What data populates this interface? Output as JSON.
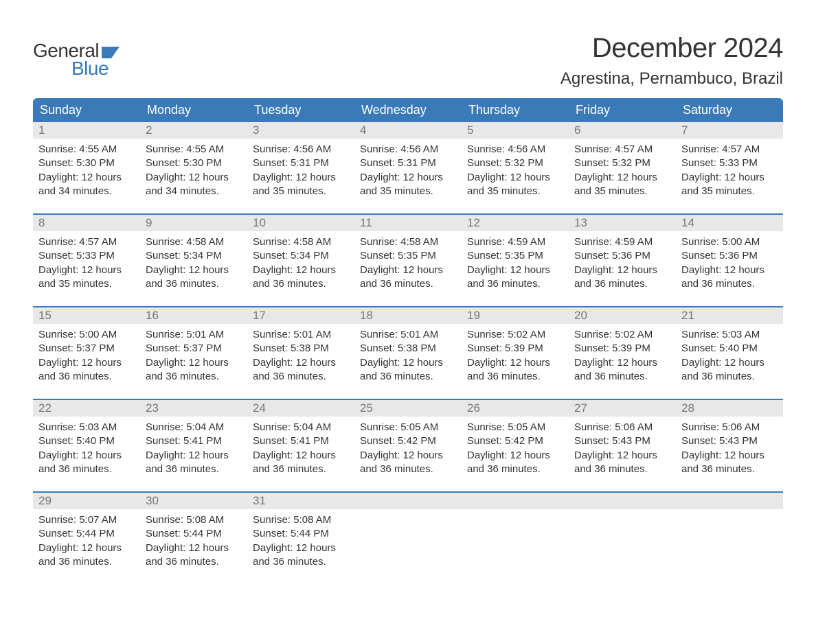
{
  "logo": {
    "text_top": "General",
    "text_bottom": "Blue",
    "flag_color": "#3a7ab8"
  },
  "title": "December 2024",
  "location": "Agrestina, Pernambuco, Brazil",
  "colors": {
    "header_bg": "#3a7ab8",
    "header_text": "#ffffff",
    "daynum_bg": "#e8e8e8",
    "daynum_text": "#777777",
    "body_text": "#333333",
    "week_divider": "#3a7ab8",
    "page_bg": "#ffffff"
  },
  "typography": {
    "title_fontsize": 40,
    "location_fontsize": 24,
    "dayname_fontsize": 18,
    "daynum_fontsize": 17,
    "body_fontsize": 15,
    "logo_fontsize": 28
  },
  "day_names": [
    "Sunday",
    "Monday",
    "Tuesday",
    "Wednesday",
    "Thursday",
    "Friday",
    "Saturday"
  ],
  "weeks": [
    [
      {
        "num": "1",
        "sunrise": "4:55 AM",
        "sunset": "5:30 PM",
        "daylight": "12 hours and 34 minutes."
      },
      {
        "num": "2",
        "sunrise": "4:55 AM",
        "sunset": "5:30 PM",
        "daylight": "12 hours and 34 minutes."
      },
      {
        "num": "3",
        "sunrise": "4:56 AM",
        "sunset": "5:31 PM",
        "daylight": "12 hours and 35 minutes."
      },
      {
        "num": "4",
        "sunrise": "4:56 AM",
        "sunset": "5:31 PM",
        "daylight": "12 hours and 35 minutes."
      },
      {
        "num": "5",
        "sunrise": "4:56 AM",
        "sunset": "5:32 PM",
        "daylight": "12 hours and 35 minutes."
      },
      {
        "num": "6",
        "sunrise": "4:57 AM",
        "sunset": "5:32 PM",
        "daylight": "12 hours and 35 minutes."
      },
      {
        "num": "7",
        "sunrise": "4:57 AM",
        "sunset": "5:33 PM",
        "daylight": "12 hours and 35 minutes."
      }
    ],
    [
      {
        "num": "8",
        "sunrise": "4:57 AM",
        "sunset": "5:33 PM",
        "daylight": "12 hours and 35 minutes."
      },
      {
        "num": "9",
        "sunrise": "4:58 AM",
        "sunset": "5:34 PM",
        "daylight": "12 hours and 36 minutes."
      },
      {
        "num": "10",
        "sunrise": "4:58 AM",
        "sunset": "5:34 PM",
        "daylight": "12 hours and 36 minutes."
      },
      {
        "num": "11",
        "sunrise": "4:58 AM",
        "sunset": "5:35 PM",
        "daylight": "12 hours and 36 minutes."
      },
      {
        "num": "12",
        "sunrise": "4:59 AM",
        "sunset": "5:35 PM",
        "daylight": "12 hours and 36 minutes."
      },
      {
        "num": "13",
        "sunrise": "4:59 AM",
        "sunset": "5:36 PM",
        "daylight": "12 hours and 36 minutes."
      },
      {
        "num": "14",
        "sunrise": "5:00 AM",
        "sunset": "5:36 PM",
        "daylight": "12 hours and 36 minutes."
      }
    ],
    [
      {
        "num": "15",
        "sunrise": "5:00 AM",
        "sunset": "5:37 PM",
        "daylight": "12 hours and 36 minutes."
      },
      {
        "num": "16",
        "sunrise": "5:01 AM",
        "sunset": "5:37 PM",
        "daylight": "12 hours and 36 minutes."
      },
      {
        "num": "17",
        "sunrise": "5:01 AM",
        "sunset": "5:38 PM",
        "daylight": "12 hours and 36 minutes."
      },
      {
        "num": "18",
        "sunrise": "5:01 AM",
        "sunset": "5:38 PM",
        "daylight": "12 hours and 36 minutes."
      },
      {
        "num": "19",
        "sunrise": "5:02 AM",
        "sunset": "5:39 PM",
        "daylight": "12 hours and 36 minutes."
      },
      {
        "num": "20",
        "sunrise": "5:02 AM",
        "sunset": "5:39 PM",
        "daylight": "12 hours and 36 minutes."
      },
      {
        "num": "21",
        "sunrise": "5:03 AM",
        "sunset": "5:40 PM",
        "daylight": "12 hours and 36 minutes."
      }
    ],
    [
      {
        "num": "22",
        "sunrise": "5:03 AM",
        "sunset": "5:40 PM",
        "daylight": "12 hours and 36 minutes."
      },
      {
        "num": "23",
        "sunrise": "5:04 AM",
        "sunset": "5:41 PM",
        "daylight": "12 hours and 36 minutes."
      },
      {
        "num": "24",
        "sunrise": "5:04 AM",
        "sunset": "5:41 PM",
        "daylight": "12 hours and 36 minutes."
      },
      {
        "num": "25",
        "sunrise": "5:05 AM",
        "sunset": "5:42 PM",
        "daylight": "12 hours and 36 minutes."
      },
      {
        "num": "26",
        "sunrise": "5:05 AM",
        "sunset": "5:42 PM",
        "daylight": "12 hours and 36 minutes."
      },
      {
        "num": "27",
        "sunrise": "5:06 AM",
        "sunset": "5:43 PM",
        "daylight": "12 hours and 36 minutes."
      },
      {
        "num": "28",
        "sunrise": "5:06 AM",
        "sunset": "5:43 PM",
        "daylight": "12 hours and 36 minutes."
      }
    ],
    [
      {
        "num": "29",
        "sunrise": "5:07 AM",
        "sunset": "5:44 PM",
        "daylight": "12 hours and 36 minutes."
      },
      {
        "num": "30",
        "sunrise": "5:08 AM",
        "sunset": "5:44 PM",
        "daylight": "12 hours and 36 minutes."
      },
      {
        "num": "31",
        "sunrise": "5:08 AM",
        "sunset": "5:44 PM",
        "daylight": "12 hours and 36 minutes."
      },
      null,
      null,
      null,
      null
    ]
  ],
  "labels": {
    "sunrise": "Sunrise: ",
    "sunset": "Sunset: ",
    "daylight": "Daylight: "
  }
}
